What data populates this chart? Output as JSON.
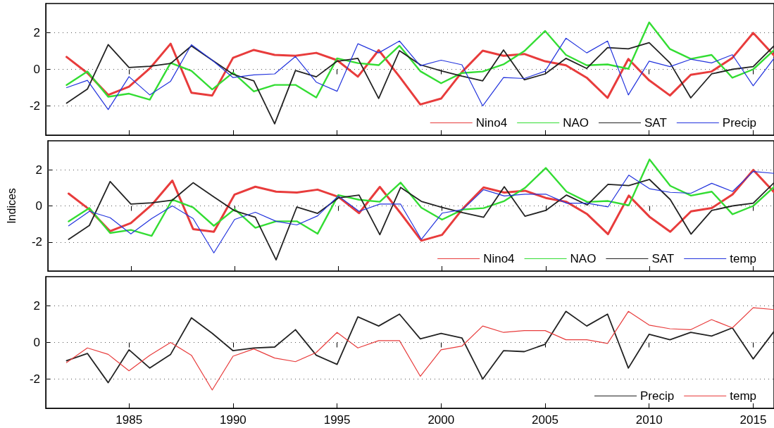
{
  "chart_data": [
    {
      "type": "line",
      "x": [
        1982,
        1983,
        1984,
        1985,
        1986,
        1987,
        1988,
        1989,
        1990,
        1991,
        1992,
        1993,
        1994,
        1995,
        1996,
        1997,
        1998,
        1999,
        2000,
        2001,
        2002,
        2003,
        2004,
        2005,
        2006,
        2007,
        2008,
        2009,
        2010,
        2011,
        2012,
        2013,
        2014,
        2015,
        2016
      ],
      "xlim": [
        1981,
        2016
      ],
      "xticks": [
        1985,
        1990,
        1995,
        2000,
        2005,
        2010,
        2015
      ],
      "ylim": [
        -3.6,
        3.6
      ],
      "yticks": [
        -2,
        0,
        2
      ],
      "grid": "y",
      "legend": "bottom right",
      "tick_labels": "y",
      "marker": "none",
      "line_style": "solid",
      "series": [
        {
          "name": "Nino4",
          "color": "#e83c3c",
          "values": [
            0.68,
            -0.2,
            -1.4,
            -0.95,
            0.05,
            1.4,
            -1.28,
            -1.43,
            0.63,
            1.06,
            0.79,
            0.74,
            0.9,
            0.5,
            -0.4,
            1.05,
            -0.4,
            -1.92,
            -1.6,
            -0.15,
            1.02,
            0.74,
            0.84,
            0.44,
            0.22,
            -0.46,
            -1.56,
            0.57,
            -0.6,
            -1.43,
            -0.3,
            -0.12,
            0.63,
            1.99,
            0.76
          ]
        },
        {
          "name": "NAO",
          "color": "#33dd33",
          "values": [
            -0.86,
            -0.12,
            -1.5,
            -1.33,
            -1.66,
            0.35,
            -0.08,
            -1.1,
            -0.18,
            -1.21,
            -0.85,
            -0.85,
            -1.54,
            0.6,
            0.34,
            0.23,
            1.29,
            -0.1,
            -0.76,
            -0.2,
            -0.12,
            0.27,
            1.0,
            2.1,
            0.79,
            0.22,
            0.27,
            0.03,
            2.57,
            1.11,
            0.57,
            0.79,
            -0.46,
            0.0,
            1.05
          ]
        },
        {
          "name": "SAT",
          "color": "#222222",
          "values": [
            -1.85,
            -1.08,
            1.35,
            0.1,
            0.17,
            0.32,
            1.28,
            0.5,
            -0.27,
            -0.63,
            -2.98,
            -0.06,
            -0.41,
            0.44,
            0.6,
            -1.59,
            1.02,
            0.25,
            -0.08,
            -0.37,
            -0.63,
            1.06,
            -0.57,
            -0.25,
            0.6,
            0.05,
            1.19,
            1.12,
            1.46,
            0.35,
            -1.56,
            -0.25,
            0.0,
            0.15,
            1.28
          ]
        },
        {
          "name": "Precip",
          "color": "#2233dd",
          "values": [
            -1.0,
            -0.6,
            -2.2,
            -0.4,
            -1.4,
            -0.65,
            1.35,
            0.5,
            -0.45,
            -0.3,
            -0.25,
            0.7,
            -0.7,
            -1.2,
            1.4,
            0.9,
            1.55,
            0.2,
            0.5,
            0.25,
            -2.0,
            -0.45,
            -0.5,
            -0.1,
            1.7,
            0.9,
            1.55,
            -1.4,
            0.45,
            0.15,
            0.55,
            0.35,
            0.8,
            -0.9,
            0.6
          ]
        }
      ]
    },
    {
      "type": "line",
      "x": [
        1982,
        1983,
        1984,
        1985,
        1986,
        1987,
        1988,
        1989,
        1990,
        1991,
        1992,
        1993,
        1994,
        1995,
        1996,
        1997,
        1998,
        1999,
        2000,
        2001,
        2002,
        2003,
        2004,
        2005,
        2006,
        2007,
        2008,
        2009,
        2010,
        2011,
        2012,
        2013,
        2014,
        2015,
        2016
      ],
      "xlim": [
        1981,
        2016
      ],
      "xticks": [
        1985,
        1990,
        1995,
        2000,
        2005,
        2010,
        2015
      ],
      "ylim": [
        -3.6,
        3.6
      ],
      "yticks": [
        -2,
        0,
        2
      ],
      "ylabel": "Indices",
      "grid": "y",
      "legend": "bottom right",
      "tick_labels": "y",
      "marker": "none",
      "line_style": "solid",
      "series": [
        {
          "name": "Nino4",
          "color": "#e83c3c",
          "values": [
            0.68,
            -0.2,
            -1.4,
            -0.95,
            0.05,
            1.4,
            -1.28,
            -1.43,
            0.63,
            1.06,
            0.79,
            0.74,
            0.9,
            0.5,
            -0.4,
            1.05,
            -0.4,
            -1.92,
            -1.6,
            -0.15,
            1.02,
            0.74,
            0.84,
            0.44,
            0.22,
            -0.46,
            -1.56,
            0.57,
            -0.6,
            -1.43,
            -0.3,
            -0.12,
            0.63,
            1.99,
            0.76
          ]
        },
        {
          "name": "NAO",
          "color": "#33dd33",
          "values": [
            -0.86,
            -0.12,
            -1.5,
            -1.33,
            -1.66,
            0.35,
            -0.08,
            -1.1,
            -0.18,
            -1.21,
            -0.85,
            -0.85,
            -1.54,
            0.6,
            0.34,
            0.23,
            1.29,
            -0.1,
            -0.76,
            -0.2,
            -0.12,
            0.27,
            1.0,
            2.1,
            0.79,
            0.22,
            0.27,
            0.03,
            2.57,
            1.11,
            0.57,
            0.79,
            -0.46,
            0.0,
            1.05
          ]
        },
        {
          "name": "SAT",
          "color": "#222222",
          "values": [
            -1.85,
            -1.08,
            1.35,
            0.1,
            0.17,
            0.32,
            1.28,
            0.5,
            -0.27,
            -0.63,
            -2.98,
            -0.06,
            -0.41,
            0.44,
            0.6,
            -1.59,
            1.02,
            0.25,
            -0.08,
            -0.37,
            -0.63,
            1.06,
            -0.57,
            -0.25,
            0.6,
            0.05,
            1.19,
            1.12,
            1.46,
            0.35,
            -1.56,
            -0.25,
            0.0,
            0.15,
            1.28
          ]
        },
        {
          "name": "temp",
          "color": "#2233dd",
          "values": [
            -1.1,
            -0.3,
            -0.65,
            -1.55,
            -0.7,
            0.0,
            -0.7,
            -2.6,
            -0.75,
            -0.35,
            -0.85,
            -1.05,
            -0.55,
            0.55,
            -0.3,
            0.1,
            0.1,
            -1.85,
            -0.4,
            -0.2,
            0.9,
            0.55,
            0.65,
            0.65,
            0.15,
            0.15,
            -0.05,
            1.7,
            0.95,
            0.75,
            0.7,
            1.25,
            0.8,
            1.9,
            1.8
          ]
        }
      ]
    },
    {
      "type": "line",
      "x": [
        1982,
        1983,
        1984,
        1985,
        1986,
        1987,
        1988,
        1989,
        1990,
        1991,
        1992,
        1993,
        1994,
        1995,
        1996,
        1997,
        1998,
        1999,
        2000,
        2001,
        2002,
        2003,
        2004,
        2005,
        2006,
        2007,
        2008,
        2009,
        2010,
        2011,
        2012,
        2013,
        2014,
        2015,
        2016
      ],
      "xlim": [
        1981,
        2016
      ],
      "xticks": [
        1985,
        1990,
        1995,
        2000,
        2005,
        2010,
        2015
      ],
      "ylim": [
        -3.6,
        3.6
      ],
      "yticks": [
        -2,
        0,
        2
      ],
      "grid": "y",
      "legend": "bottom right",
      "marker": "none",
      "line_style": "solid",
      "series": [
        {
          "name": "Precip",
          "color": "#222222",
          "values": [
            -1.0,
            -0.6,
            -2.2,
            -0.4,
            -1.4,
            -0.65,
            1.35,
            0.5,
            -0.45,
            -0.3,
            -0.25,
            0.7,
            -0.7,
            -1.2,
            1.4,
            0.9,
            1.55,
            0.2,
            0.5,
            0.25,
            -2.0,
            -0.45,
            -0.5,
            -0.1,
            1.7,
            0.9,
            1.55,
            -1.4,
            0.45,
            0.15,
            0.55,
            0.35,
            0.8,
            -0.9,
            0.6
          ]
        },
        {
          "name": "temp",
          "color": "#e83c3c",
          "values": [
            -1.1,
            -0.3,
            -0.65,
            -1.55,
            -0.7,
            0.0,
            -0.7,
            -2.6,
            -0.75,
            -0.35,
            -0.85,
            -1.05,
            -0.55,
            0.55,
            -0.3,
            0.1,
            0.1,
            -1.85,
            -0.4,
            -0.2,
            0.9,
            0.55,
            0.65,
            0.65,
            0.15,
            0.15,
            -0.05,
            1.7,
            0.95,
            0.75,
            0.7,
            1.25,
            0.8,
            1.9,
            1.8
          ]
        }
      ]
    }
  ]
}
